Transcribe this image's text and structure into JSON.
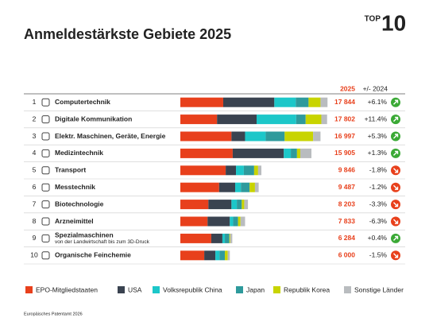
{
  "badge": {
    "top": "TOP",
    "number": "10"
  },
  "footer": "Europäisches Patentamt 2026",
  "chart_data": {
    "type": "stacked-bar-horizontal",
    "title": "Anmeldestärkste Gebiete 2025",
    "total_header": "2025",
    "change_header": "+/- 2024",
    "ranks": [
      1,
      2,
      3,
      4,
      5,
      6,
      7,
      8,
      9,
      10
    ],
    "categories": [
      "Computertechnik",
      "Digitale Kommunikation",
      "Elektr. Maschinen, Geräte, Energie",
      "Medizintechnik",
      "Transport",
      "Messtechnik",
      "Biotechnologie",
      "Arzneimittel",
      "Spezialmaschinen",
      "Organische Feinchemie"
    ],
    "category_details": [
      null,
      null,
      null,
      null,
      null,
      null,
      null,
      null,
      "von der Landwirtschaft bis zum 3D-Druck",
      null
    ],
    "totals": [
      17844,
      17802,
      16997,
      15905,
      9846,
      9487,
      8203,
      7833,
      6284,
      6000
    ],
    "value_labels": [
      "17 844",
      "17 802",
      "16 997",
      "15 905",
      "9 846",
      "9 487",
      "8 203",
      "7 833",
      "6 284",
      "6 000"
    ],
    "changes": [
      "+6.1%",
      "+11.4%",
      "+5.3%",
      "+1.3%",
      "-1.8%",
      "-1.2%",
      "-3.3%",
      "-6.3%",
      "+0.4%",
      "-1.5%"
    ],
    "xlim": [
      0,
      18500
    ],
    "series": [
      {
        "name": "EPO-Mitgliedstaaten",
        "color": "#e8401c",
        "values": [
          5200,
          4450,
          6200,
          6350,
          5500,
          4700,
          3400,
          3300,
          3750,
          2900
        ]
      },
      {
        "name": "USA",
        "color": "#3a4350",
        "values": [
          6200,
          4800,
          1650,
          6200,
          1250,
          1950,
          2800,
          2700,
          1350,
          1350
        ]
      },
      {
        "name": "Volksrepublik China",
        "color": "#1cc7c9",
        "values": [
          2600,
          4800,
          2500,
          850,
          950,
          700,
          650,
          400,
          300,
          500
        ]
      },
      {
        "name": "Japan",
        "color": "#2e9a9c",
        "values": [
          1550,
          1150,
          2300,
          750,
          1250,
          1050,
          600,
          600,
          550,
          650
        ]
      },
      {
        "name": "Republik Korea",
        "color": "#c8d400",
        "values": [
          1450,
          1900,
          3450,
          400,
          480,
          650,
          300,
          300,
          100,
          350
        ]
      },
      {
        "name": "Sonstige Länder",
        "color": "#b9bcbf",
        "values": [
          850,
          700,
          900,
          1350,
          400,
          450,
          450,
          550,
          250,
          250
        ]
      }
    ]
  }
}
